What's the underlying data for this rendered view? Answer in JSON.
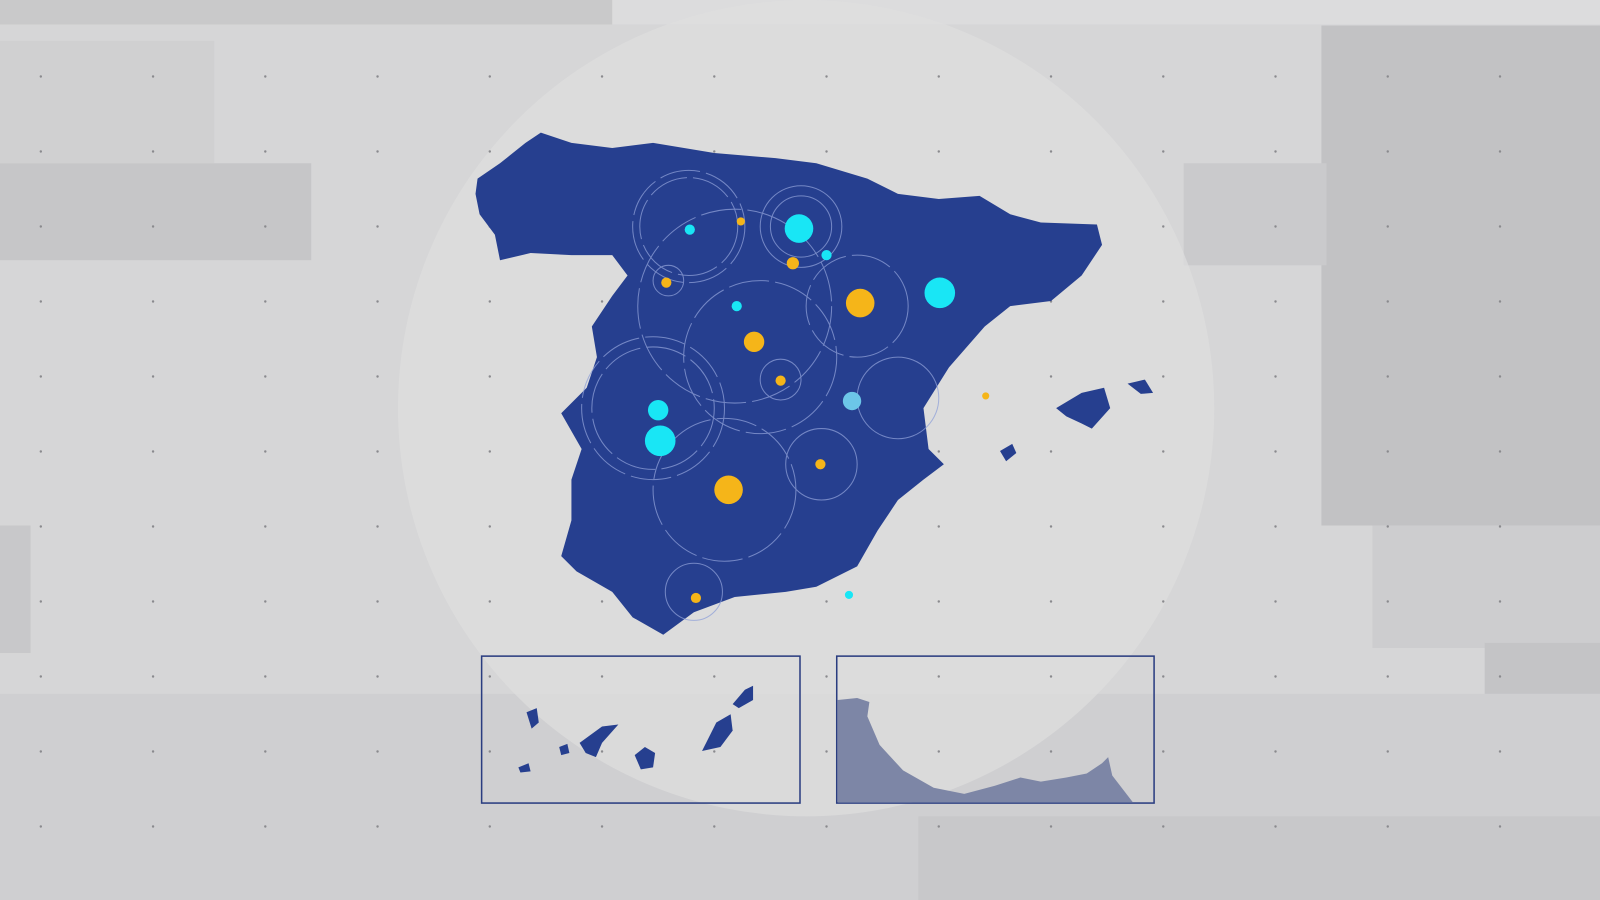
{
  "colors": {
    "background": "#d6d6d7",
    "land": "#263f8f",
    "inset_border": "#2a3d80",
    "marker_yellow": "#f5b519",
    "marker_cyan": "#19e6f5",
    "marker_lightblue": "#6cc6e8",
    "inset_terrain": "#7d86a6"
  },
  "map": {
    "region": "Spain",
    "insets": [
      "canary-islands",
      "ceuta-melilla-coast"
    ]
  }
}
